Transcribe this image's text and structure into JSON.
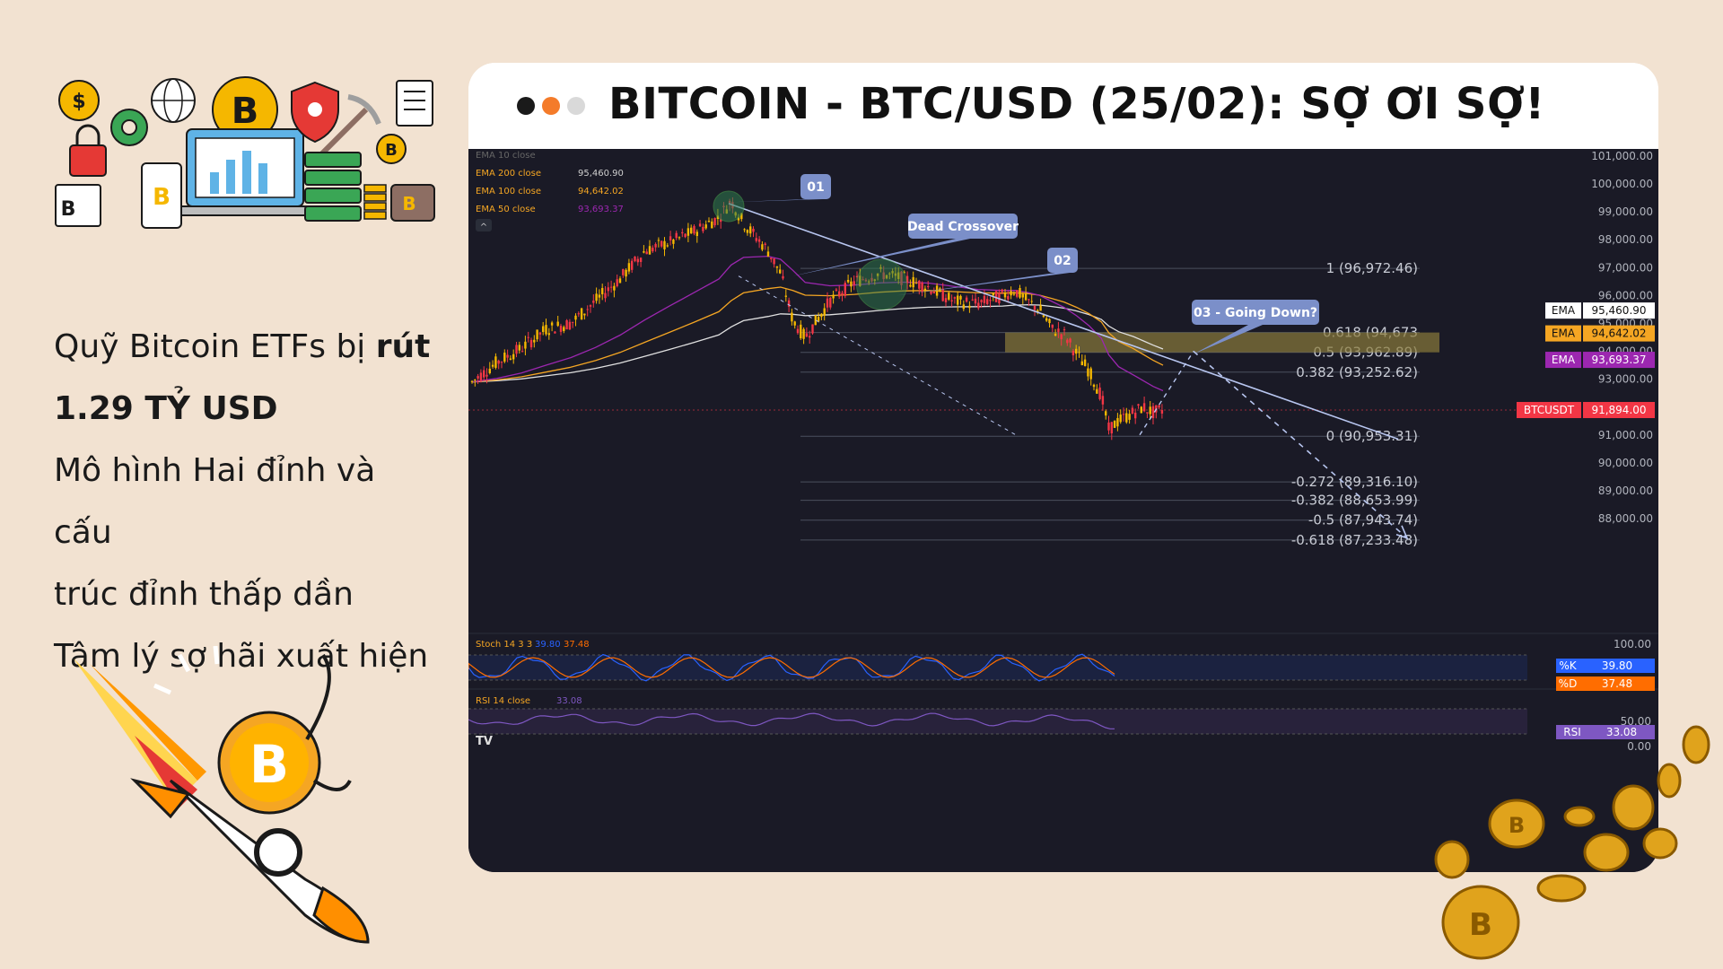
{
  "title": "BITCOIN - BTC/USD (25/02): SỢ ƠI SỢ!",
  "left_text": {
    "line1_prefix": "Quỹ Bitcoin ETFs bị ",
    "line1_bold": "rút",
    "line2_bold": "1.29 TỶ USD",
    "line3": "Mô hình Hai đỉnh và cấu",
    "line4": "trúc đỉnh thấp dần",
    "line5": "Tâm lý sợ hãi xuất hiện"
  },
  "window_dots": [
    {
      "name": "dot-black",
      "color": "#1a1a1a"
    },
    {
      "name": "dot-orange",
      "color": "#f47b2a"
    },
    {
      "name": "dot-gray",
      "color": "#d9d9d9"
    }
  ],
  "colors": {
    "background": "#f2e2d1",
    "chart_bg": "#1a1a26",
    "axis_text": "#b2b5be",
    "up_candle": "#f5b700",
    "down_candle": "#f23645",
    "ema10": "#c0c0c0",
    "ema200": "#e0e0e0",
    "ema100": "#f5a623",
    "ema50": "#9c27b0",
    "fib_text": "#c8cbd4",
    "annotation": "#7b8fc9",
    "stoch_k": "#2962ff",
    "stoch_d": "#ff6d00",
    "rsi": "#7e57c2",
    "zone": "#8a7a3a"
  },
  "chart_data": {
    "type": "candlestick",
    "symbol": "BTCUSDT",
    "legend": [
      {
        "label": "EMA 10 close",
        "value": ""
      },
      {
        "label": "EMA 200 close",
        "value": "95,460.90"
      },
      {
        "label": "EMA 100 close",
        "value": "94,642.02"
      },
      {
        "label": "EMA 50 close",
        "value": "93,693.37"
      }
    ],
    "ylim": [
      87000,
      101000
    ],
    "y_ticks": [
      "101,000.00",
      "100,000.00",
      "99,000.00",
      "98,000.00",
      "97,000.00",
      "96,000.00",
      "95,000.00",
      "94,000.00",
      "93,000.00",
      "91,000.00",
      "90,000.00",
      "89,000.00",
      "88,000.00"
    ],
    "y_tick_values": [
      101000,
      100000,
      99000,
      98000,
      97000,
      96000,
      95000,
      94000,
      93000,
      91000,
      90000,
      89000,
      88000
    ],
    "price_tags": [
      {
        "label": "EMA",
        "value": "95,460.90",
        "price": 95460.9,
        "color": "#ffffff",
        "text_color": "#111111"
      },
      {
        "label": "EMA",
        "value": "94,642.02",
        "price": 94642.02,
        "color": "#f5a623",
        "text_color": "#111111"
      },
      {
        "label": "EMA",
        "value": "93,693.37",
        "price": 93693.37,
        "color": "#9c27b0",
        "text_color": "#ffffff"
      },
      {
        "label": "BTCUSDT",
        "value": "91,894.00",
        "price": 91894,
        "color": "#f23645",
        "text_color": "#ffffff"
      }
    ],
    "fib_levels": [
      {
        "label": "1 (96,972.46)",
        "price": 96972.46
      },
      {
        "label": "0.618 (94,673",
        "price": 94673
      },
      {
        "label": "0.5 (93,962.89)",
        "price": 93962.89
      },
      {
        "label": "0.382 (93,252.62)",
        "price": 93252.62
      },
      {
        "label": "0 (90,953.31)",
        "price": 90953.31
      },
      {
        "label": "-0.272 (89,316.10)",
        "price": 89316.1
      },
      {
        "label": "-0.382 (88,653.99)",
        "price": 88653.99
      },
      {
        "label": "-0.5 (87,943.74)",
        "price": 87943.74
      },
      {
        "label": "-0.618 (87,233.48)",
        "price": 87233.48
      }
    ],
    "price_path": [
      [
        0,
        92900
      ],
      [
        10,
        93600
      ],
      [
        20,
        94100
      ],
      [
        30,
        94800
      ],
      [
        40,
        95000
      ],
      [
        50,
        95800
      ],
      [
        60,
        96600
      ],
      [
        70,
        97600
      ],
      [
        80,
        97900
      ],
      [
        90,
        98300
      ],
      [
        100,
        98800
      ],
      [
        105,
        99400
      ],
      [
        110,
        98600
      ],
      [
        120,
        97600
      ],
      [
        125,
        96800
      ],
      [
        130,
        95100
      ],
      [
        135,
        94500
      ],
      [
        145,
        95800
      ],
      [
        155,
        96500
      ],
      [
        165,
        96800
      ],
      [
        175,
        96600
      ],
      [
        185,
        96300
      ],
      [
        195,
        95800
      ],
      [
        205,
        95700
      ],
      [
        215,
        96000
      ],
      [
        220,
        96200
      ],
      [
        225,
        95800
      ],
      [
        230,
        95500
      ],
      [
        235,
        94800
      ],
      [
        240,
        94600
      ],
      [
        245,
        93900
      ],
      [
        250,
        93300
      ],
      [
        255,
        92400
      ],
      [
        258,
        91200
      ],
      [
        262,
        91500
      ],
      [
        268,
        91800
      ],
      [
        272,
        92000
      ],
      [
        276,
        91800
      ],
      [
        280,
        91894
      ]
    ],
    "callouts": [
      {
        "label": "01"
      },
      {
        "label": "Dead Crossover"
      },
      {
        "label": "02"
      },
      {
        "label": "03 - Going Down?"
      }
    ],
    "stoch": {
      "label": "Stoch 14 3 3",
      "k_value": "39.80",
      "d_value": "37.48",
      "k_tag": "%K",
      "d_tag": "%D",
      "top_tick": "100.00"
    },
    "rsi": {
      "label": "RSI 14 close",
      "value": "33.08",
      "tag": "RSI",
      "ticks": [
        "50.00",
        "0.00"
      ]
    },
    "collapse_button": "^",
    "logo": "TV"
  }
}
